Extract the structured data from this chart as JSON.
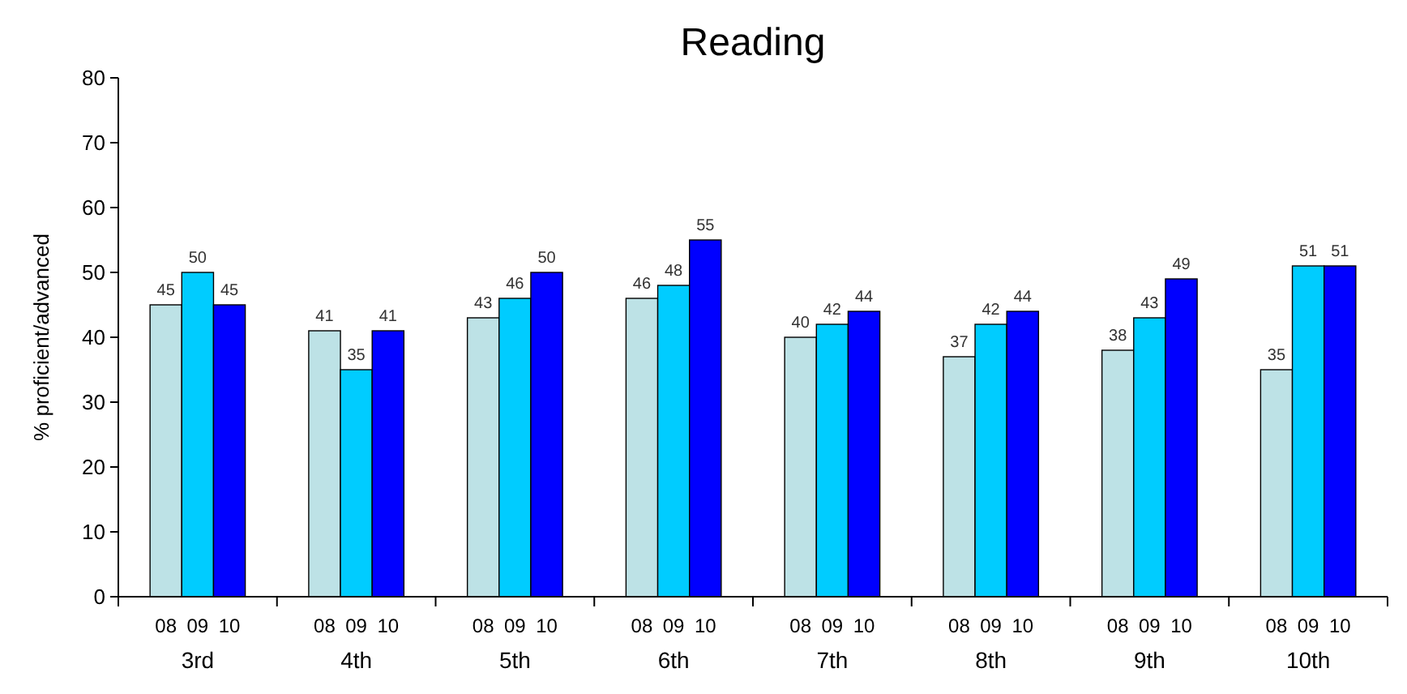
{
  "chart_data": {
    "type": "bar",
    "title": "Reading",
    "ylabel": "% proficient/advanced",
    "categories": [
      "3rd",
      "4th",
      "5th",
      "6th",
      "7th",
      "8th",
      "9th",
      "10th"
    ],
    "series": [
      {
        "name": "08",
        "color": "#bde2e6",
        "values": [
          45,
          41,
          43,
          46,
          40,
          37,
          38,
          35
        ]
      },
      {
        "name": "09",
        "color": "#00ccff",
        "values": [
          50,
          35,
          46,
          48,
          42,
          42,
          43,
          51
        ]
      },
      {
        "name": "10",
        "color": "#0000ff",
        "values": [
          45,
          41,
          50,
          55,
          44,
          44,
          49,
          51
        ]
      }
    ],
    "ylim": [
      0,
      80
    ],
    "yticks": [
      0,
      10,
      20,
      30,
      40,
      50,
      60,
      70,
      80
    ],
    "data_labels": true
  }
}
